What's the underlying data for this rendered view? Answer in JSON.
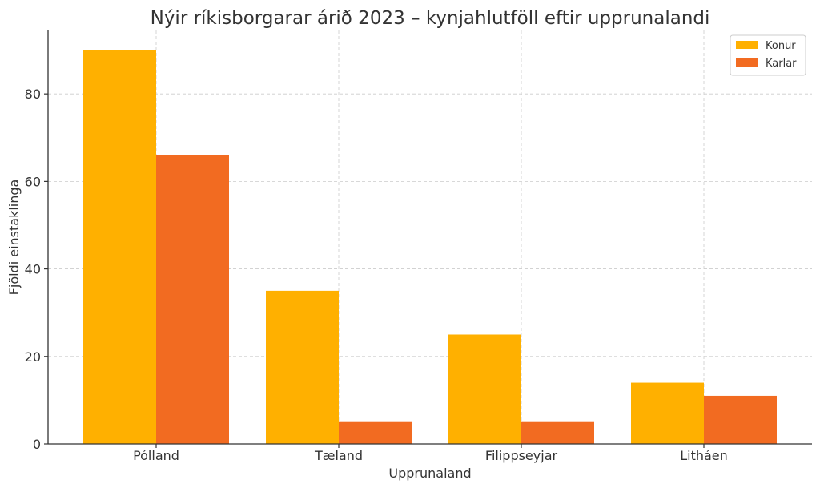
{
  "chart_data": {
    "type": "bar",
    "title": "Nýir ríkisborgarar árið 2023 – kynjahlutföll eftir upprunalandi",
    "xlabel": "Upprunaland",
    "ylabel": "Fjöldi einstaklinga",
    "categories": [
      "Pólland",
      "Tæland",
      "Filippseyjar",
      "Litháen"
    ],
    "series": [
      {
        "name": "Konur",
        "values": [
          90,
          35,
          25,
          14
        ],
        "color": "#FFB000"
      },
      {
        "name": "Karlar",
        "values": [
          66,
          5,
          5,
          11
        ],
        "color": "#F26B21"
      }
    ],
    "ylim": [
      0,
      94.5
    ],
    "yticks": [
      0,
      20,
      40,
      60,
      80
    ],
    "grid": true,
    "legend_position": "top-right"
  }
}
